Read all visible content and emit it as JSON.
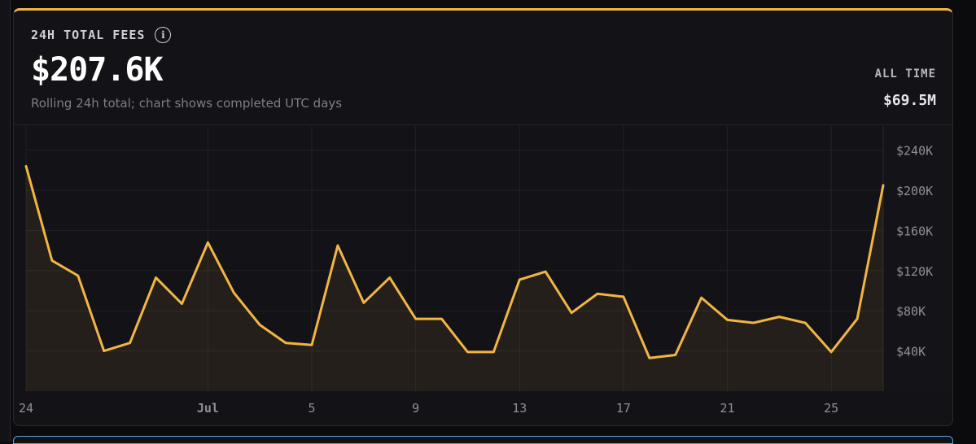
{
  "card": {
    "title": "24H TOTAL FEES",
    "value": "$207.6K",
    "subtitle": "Rolling 24h total; chart shows completed UTC days",
    "all_time_label": "ALL TIME",
    "all_time_value": "$69.5M",
    "info_icon": "info-icon",
    "accent_color": "#f2b544"
  },
  "chart_data": {
    "type": "area",
    "title": "",
    "xlabel": "",
    "ylabel": "",
    "x": [
      "Jun 24",
      "Jun 25",
      "Jun 26",
      "Jun 27",
      "Jun 28",
      "Jun 29",
      "Jun 30",
      "Jul 1",
      "Jul 2",
      "Jul 3",
      "Jul 4",
      "Jul 5",
      "Jul 6",
      "Jul 7",
      "Jul 8",
      "Jul 9",
      "Jul 10",
      "Jul 11",
      "Jul 12",
      "Jul 13",
      "Jul 14",
      "Jul 15",
      "Jul 16",
      "Jul 17",
      "Jul 18",
      "Jul 19",
      "Jul 20",
      "Jul 21",
      "Jul 22",
      "Jul 23",
      "Jul 24",
      "Jul 25",
      "Jul 26",
      "Jul 27"
    ],
    "values": [
      224000,
      130000,
      115000,
      40000,
      48000,
      113000,
      87000,
      148000,
      98000,
      66000,
      48000,
      46000,
      145000,
      88000,
      113000,
      72000,
      72000,
      39000,
      39000,
      111000,
      119000,
      78000,
      97000,
      94000,
      33000,
      36000,
      93000,
      71000,
      68000,
      74000,
      68000,
      39000,
      72000,
      205000
    ],
    "x_tick_labels": [
      "24",
      "Jul",
      "5",
      "9",
      "13",
      "17",
      "21",
      "25"
    ],
    "x_tick_index": [
      0,
      7,
      11,
      15,
      19,
      23,
      27,
      31
    ],
    "y_ticks": [
      40000,
      80000,
      120000,
      160000,
      200000,
      240000
    ],
    "y_tick_labels": [
      "$40K",
      "$80K",
      "$120K",
      "$160K",
      "$200K",
      "$240K"
    ],
    "ylim": [
      0,
      264000
    ],
    "grid": true,
    "line_color": "#f2b544",
    "fill_color": "#f2b544"
  }
}
